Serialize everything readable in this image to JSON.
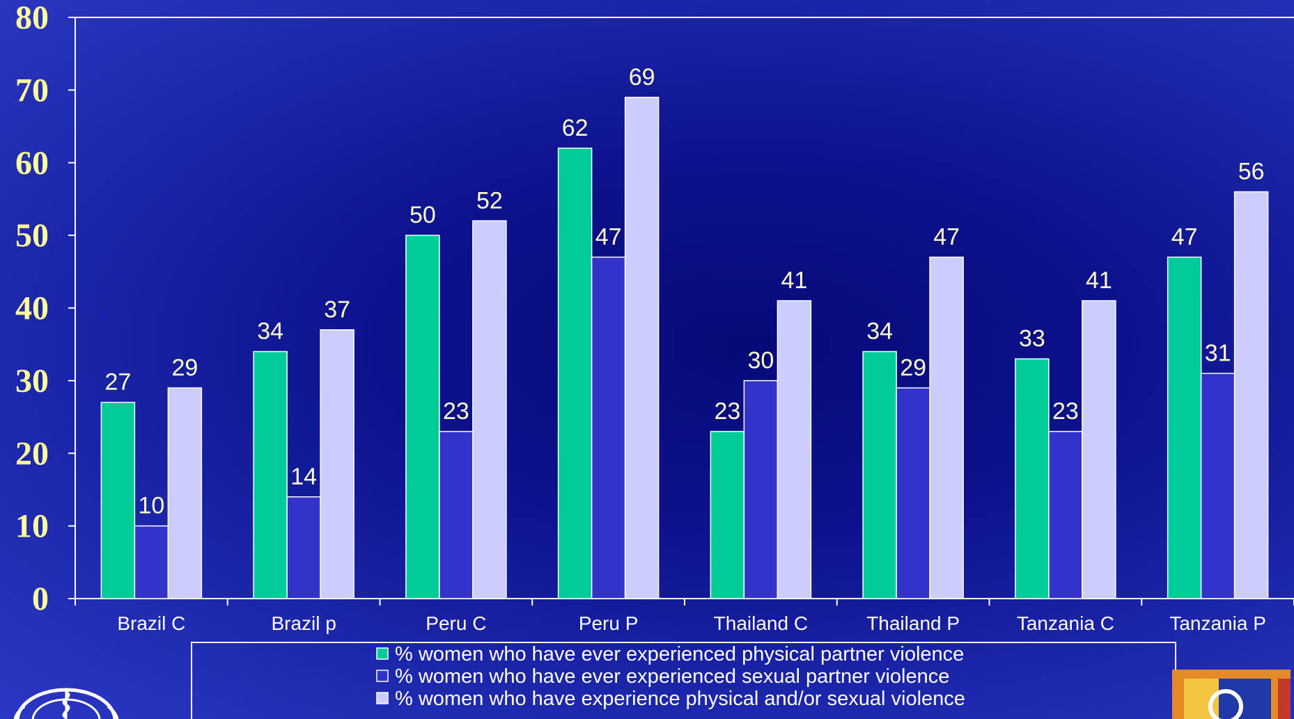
{
  "chart_data": {
    "type": "bar",
    "categories": [
      "Brazil C",
      "Brazil p",
      "Peru C",
      "Peru P",
      "Thailand C",
      "Thailand P",
      "Tanzania C",
      "Tanzania P"
    ],
    "series": [
      {
        "name": "% women who have ever experienced physical partner violence",
        "color": "#00cc99",
        "values": [
          27,
          34,
          50,
          62,
          23,
          34,
          33,
          47
        ]
      },
      {
        "name": "% women who have ever experienced sexual  partner violence",
        "color": "#3333cc",
        "values": [
          10,
          14,
          23,
          47,
          30,
          29,
          23,
          31
        ]
      },
      {
        "name": "% women who have experience physical and/or sexual violence",
        "color": "#ccccff",
        "values": [
          29,
          37,
          52,
          69,
          41,
          47,
          41,
          56
        ]
      }
    ],
    "yticks": [
      0,
      10,
      20,
      30,
      40,
      50,
      60,
      70,
      80
    ],
    "ylim": [
      0,
      80
    ],
    "grid": false,
    "legend_position": "bottom",
    "colors": {
      "tick_label": "#ffff99",
      "data_label": "#ffffcc",
      "axis": "#ffffff"
    }
  }
}
